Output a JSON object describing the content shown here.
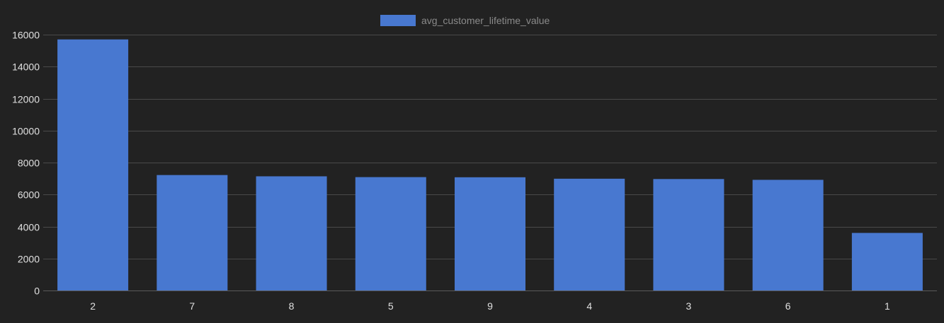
{
  "chart_data": {
    "type": "bar",
    "title": "",
    "xlabel": "",
    "ylabel": "",
    "categories": [
      "2",
      "7",
      "8",
      "5",
      "9",
      "4",
      "3",
      "6",
      "1"
    ],
    "series": [
      {
        "name": "avg_customer_lifetime_value",
        "color": "#4878d0",
        "values": [
          15700,
          7220,
          7140,
          7090,
          7080,
          6990,
          6970,
          6920,
          3600
        ]
      }
    ],
    "ylim": [
      0,
      16000
    ],
    "yticks": [
      "0",
      "2000",
      "4000",
      "6000",
      "8000",
      "10000",
      "12000",
      "14000",
      "16000"
    ],
    "grid": true,
    "legend": "top-center"
  }
}
